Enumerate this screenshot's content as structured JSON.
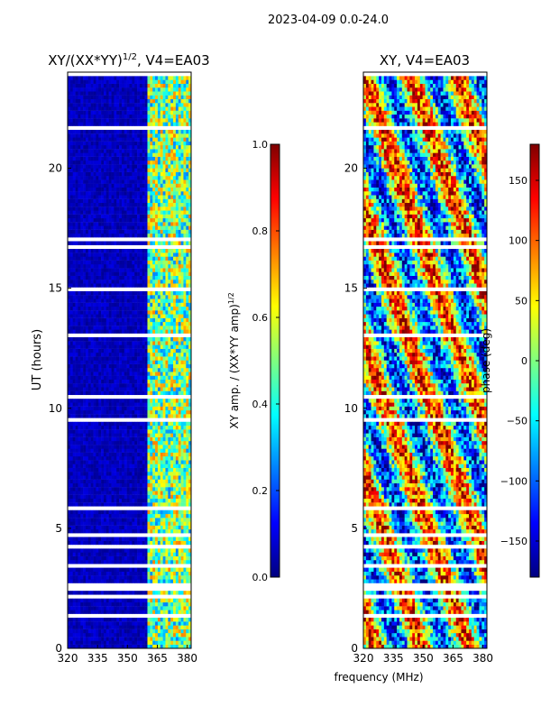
{
  "figure": {
    "suptitle": "2023-04-09 0.0-24.0",
    "xlabel": "frequency (MHz)"
  },
  "colors": {
    "jet": [
      "#00007f",
      "#0000ff",
      "#007fff",
      "#00ffff",
      "#7fff7f",
      "#ffff00",
      "#ff7f00",
      "#ff0000",
      "#7f0000"
    ],
    "gap": "#ffffff",
    "axis": "#000000"
  },
  "chart_data": [
    {
      "type": "heatmap",
      "title_prefix": "XY/(XX*YY)",
      "title_exponent": "1/2",
      "title_suffix": ", V4=EA03",
      "xlabel": "",
      "ylabel": "UT (hours)",
      "xlim": [
        320,
        382
      ],
      "ylim": [
        0,
        24
      ],
      "xticks": [
        320,
        335,
        350,
        365,
        380
      ],
      "yticks": [
        0,
        5,
        10,
        15,
        20
      ],
      "value_range": [
        0.0,
        1.0
      ],
      "active_band_mhz": [
        360,
        382
      ],
      "colorbar": {
        "label_prefix": "XY amp. / (XX*YY amp)",
        "label_exponent": "1/2",
        "ticks": [
          0.0,
          0.2,
          0.4,
          0.6,
          0.8,
          1.0
        ],
        "tick_labels": [
          "0.0",
          "0.2",
          "0.4",
          "0.6",
          "0.8",
          "1.0"
        ]
      }
    },
    {
      "type": "heatmap",
      "title": "XY, V4=EA03",
      "xlabel": "",
      "ylabel": "",
      "xlim": [
        320,
        382
      ],
      "ylim": [
        0,
        24
      ],
      "xticks": [
        320,
        335,
        350,
        365,
        380
      ],
      "yticks": [
        0,
        5,
        10,
        15,
        20
      ],
      "value_range": [
        -180,
        180
      ],
      "colorbar": {
        "label": "phase (deg)",
        "ticks": [
          -150,
          -100,
          -50,
          0,
          50,
          100,
          150
        ],
        "tick_labels": [
          "−150",
          "−100",
          "−50",
          "0",
          "50",
          "100",
          "150"
        ]
      }
    }
  ]
}
